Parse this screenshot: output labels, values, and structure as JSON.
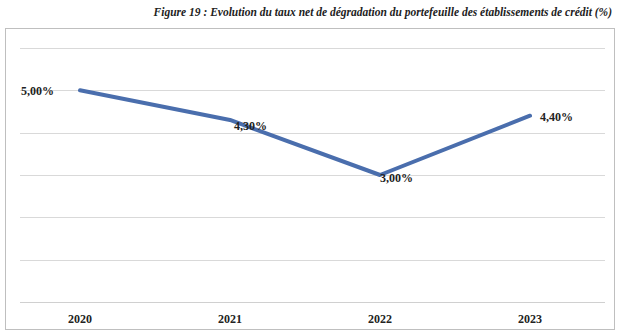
{
  "chart_data": {
    "type": "line",
    "title": "Figure 19  : Evolution du taux net de dégradation du portefeuille des établissements de crédit (%)",
    "categories": [
      "2020",
      "2021",
      "2022",
      "2023"
    ],
    "values": [
      5.0,
      4.3,
      3.0,
      4.4
    ],
    "value_labels": [
      "5,00%",
      "4,30%",
      "3,00%",
      "4,40%"
    ],
    "color": "#4a6ead",
    "ylim": [
      0,
      6
    ],
    "yticks": [
      0,
      1,
      2,
      3,
      4,
      5,
      6
    ],
    "grid": true,
    "data_labels": true,
    "tick_labels": "x"
  }
}
